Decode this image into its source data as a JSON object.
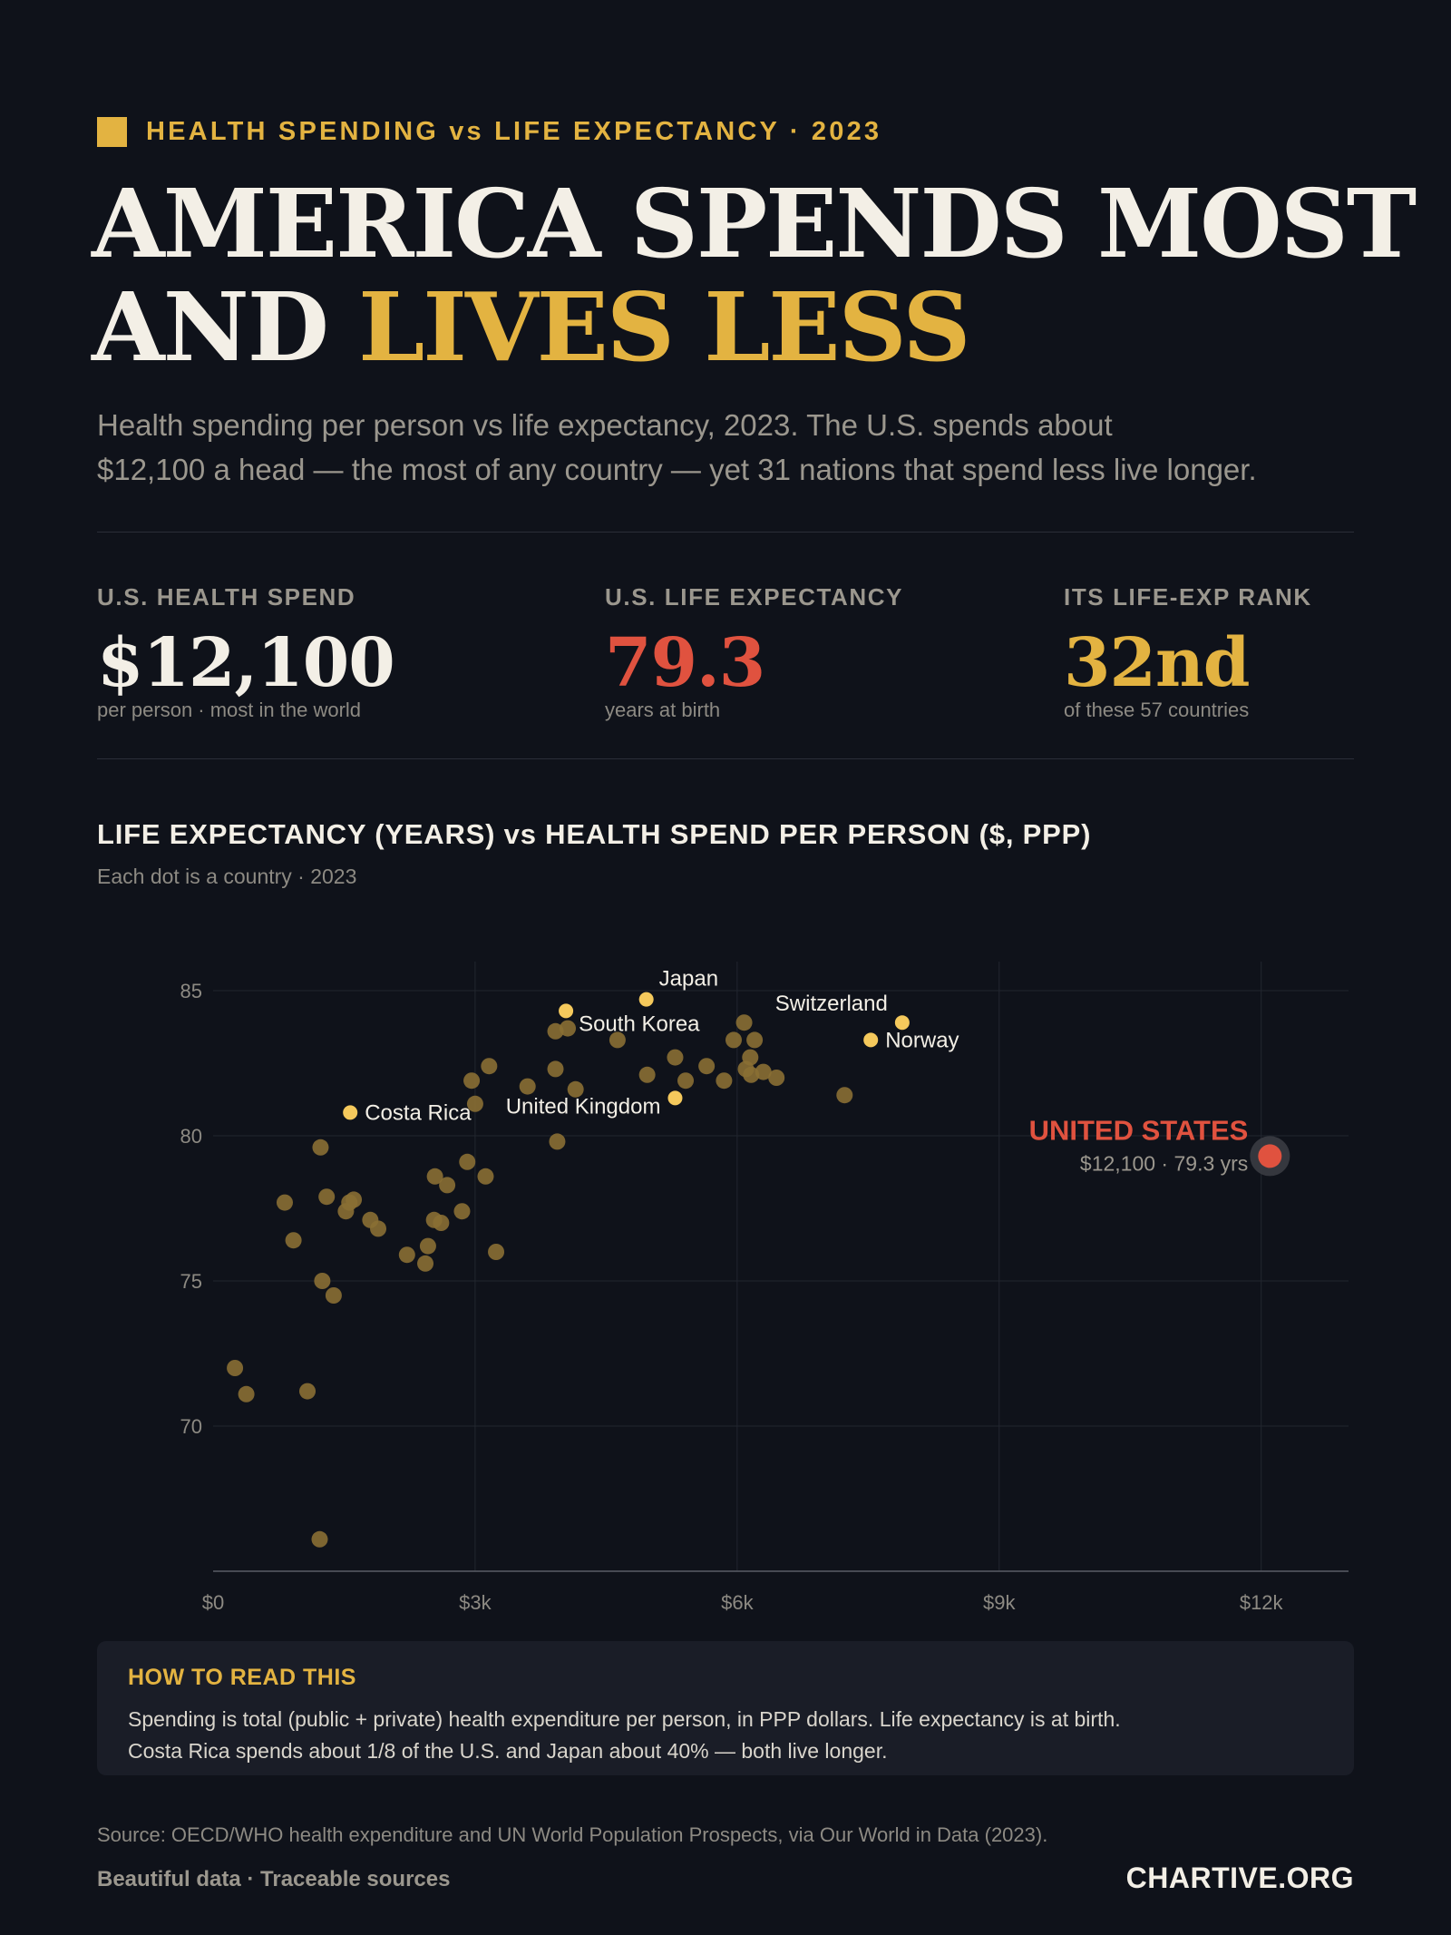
{
  "header": {
    "kicker": "HEALTH SPENDING vs LIFE EXPECTANCY · 2023",
    "headline_line1": "AMERICA SPENDS MOST",
    "headline_line2_prefix": "AND ",
    "headline_line2_accent": "LIVES LESS",
    "subtitle_line1": "Health spending per person vs life expectancy, 2023. The U.S. spends about",
    "subtitle_line2": "$12,100 a head — the most of any country — yet 31 nations that spend less live longer."
  },
  "kpis": [
    {
      "label": "U.S. HEALTH SPEND",
      "value": "$12,100",
      "note": "per person · most in the world",
      "color": "#f3efe6"
    },
    {
      "label": "U.S. LIFE EXPECTANCY",
      "value": "79.3",
      "note": "years at birth",
      "color": "#e0523f"
    },
    {
      "label": "ITS LIFE-EXP RANK",
      "value": "32nd",
      "note": "of these 57 countries",
      "color": "#e3b341"
    }
  ],
  "chart_title": "LIFE EXPECTANCY (YEARS) vs HEALTH SPEND PER PERSON ($, PPP)",
  "chart_subtitle": "Each dot is a country · 2023",
  "chart_data": {
    "type": "scatter",
    "xlabel": "",
    "ylabel": "",
    "xlim": [
      0,
      13000
    ],
    "ylim": [
      65,
      86
    ],
    "x_ticks": [
      0,
      3000,
      6000,
      9000,
      12000
    ],
    "x_tick_labels": [
      "$0",
      "$3k",
      "$6k",
      "$9k",
      "$12k"
    ],
    "y_ticks": [
      70,
      75,
      80,
      85
    ],
    "y_tick_labels": [
      "70",
      "75",
      "80",
      "85"
    ],
    "grid": true,
    "colors": {
      "point": "#8a6f34",
      "highlight": "#f5c95c",
      "us": "#e0523f"
    },
    "points": [
      {
        "x": 250,
        "y": 72.0
      },
      {
        "x": 380,
        "y": 71.1
      },
      {
        "x": 820,
        "y": 77.7
      },
      {
        "x": 920,
        "y": 76.4
      },
      {
        "x": 1080,
        "y": 71.2
      },
      {
        "x": 1230,
        "y": 79.6
      },
      {
        "x": 1220,
        "y": 66.1
      },
      {
        "x": 1250,
        "y": 75.0
      },
      {
        "x": 1300,
        "y": 77.9
      },
      {
        "x": 1380,
        "y": 74.5
      },
      {
        "x": 1520,
        "y": 77.4
      },
      {
        "x": 1560,
        "y": 77.7
      },
      {
        "x": 1610,
        "y": 77.8
      },
      {
        "x": 1800,
        "y": 77.1
      },
      {
        "x": 1890,
        "y": 76.8
      },
      {
        "x": 2220,
        "y": 75.9
      },
      {
        "x": 2430,
        "y": 75.6
      },
      {
        "x": 2460,
        "y": 76.2
      },
      {
        "x": 2530,
        "y": 77.1
      },
      {
        "x": 2540,
        "y": 78.6
      },
      {
        "x": 2610,
        "y": 77.0
      },
      {
        "x": 2680,
        "y": 78.3
      },
      {
        "x": 2850,
        "y": 77.4
      },
      {
        "x": 2910,
        "y": 79.1
      },
      {
        "x": 2960,
        "y": 81.9
      },
      {
        "x": 3000,
        "y": 81.1
      },
      {
        "x": 3120,
        "y": 78.6
      },
      {
        "x": 3160,
        "y": 82.4
      },
      {
        "x": 3240,
        "y": 76.0
      },
      {
        "x": 3600,
        "y": 81.7
      },
      {
        "x": 3920,
        "y": 83.6
      },
      {
        "x": 3920,
        "y": 82.3
      },
      {
        "x": 3940,
        "y": 79.8
      },
      {
        "x": 4060,
        "y": 83.7
      },
      {
        "x": 4150,
        "y": 81.6
      },
      {
        "x": 4630,
        "y": 83.3
      },
      {
        "x": 4970,
        "y": 82.1
      },
      {
        "x": 5290,
        "y": 82.7
      },
      {
        "x": 5410,
        "y": 81.9
      },
      {
        "x": 5650,
        "y": 82.4
      },
      {
        "x": 5850,
        "y": 81.9
      },
      {
        "x": 5960,
        "y": 83.3
      },
      {
        "x": 6080,
        "y": 83.9
      },
      {
        "x": 6100,
        "y": 82.3
      },
      {
        "x": 6150,
        "y": 82.7
      },
      {
        "x": 6160,
        "y": 82.1
      },
      {
        "x": 6200,
        "y": 83.3
      },
      {
        "x": 6300,
        "y": 82.2
      },
      {
        "x": 6450,
        "y": 82.0
      },
      {
        "x": 7230,
        "y": 81.4
      }
    ],
    "highlights": [
      {
        "name": "Japan",
        "x": 4960,
        "y": 84.7,
        "label_pos": "above-right"
      },
      {
        "name": "South Korea",
        "x": 4040,
        "y": 84.3,
        "label_pos": "below-right"
      },
      {
        "name": "Switzerland",
        "x": 7890,
        "y": 83.9,
        "label_pos": "above-left"
      },
      {
        "name": "Norway",
        "x": 7530,
        "y": 83.3,
        "label_pos": "right"
      },
      {
        "name": "Costa Rica",
        "x": 1570,
        "y": 80.8,
        "label_pos": "right"
      },
      {
        "name": "United Kingdom",
        "x": 5290,
        "y": 81.3,
        "label_pos": "left"
      }
    ],
    "us": {
      "x": 12100,
      "y": 79.3,
      "label": "UNITED STATES",
      "sublabel": "$12,100 · 79.3 yrs"
    }
  },
  "howto": {
    "title": "HOW TO READ THIS",
    "line1": "Spending is total (public + private) health expenditure per person, in PPP dollars. Life expectancy is at birth.",
    "line2": "Costa Rica spends about 1/8 of the U.S. and Japan about 40% — both live longer."
  },
  "footer": {
    "source": "Source: OECD/WHO health expenditure and UN World Population Prospects, via Our World in Data (2023).",
    "tagline": "Beautiful data · Traceable sources",
    "brand": "CHARTIVE.ORG"
  }
}
